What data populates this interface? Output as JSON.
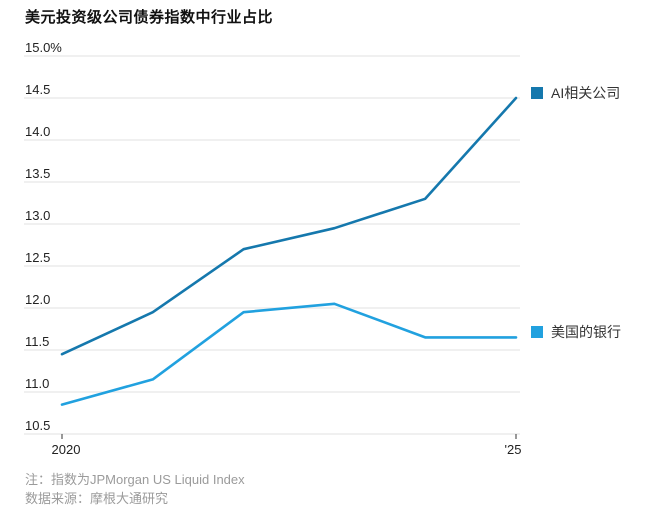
{
  "title": "美元投资级公司债券指数中行业占比",
  "chart_data": {
    "type": "line",
    "x": [
      2020,
      2021,
      2022,
      2023,
      2024,
      2025
    ],
    "series": [
      {
        "name": "AI相关公司",
        "color": "#1578ad",
        "values": [
          11.45,
          11.95,
          12.7,
          12.95,
          13.3,
          14.5
        ]
      },
      {
        "name": "美国的银行",
        "color": "#21a1df",
        "values": [
          10.85,
          11.15,
          11.95,
          12.05,
          11.65,
          11.65
        ]
      }
    ],
    "ylim": [
      10.5,
      15.0
    ],
    "yticks": [
      {
        "value": 15.0,
        "label": "15.0%"
      },
      {
        "value": 14.5,
        "label": "14.5"
      },
      {
        "value": 14.0,
        "label": "14.0"
      },
      {
        "value": 13.5,
        "label": "13.5"
      },
      {
        "value": 13.0,
        "label": "13.0"
      },
      {
        "value": 12.5,
        "label": "12.5"
      },
      {
        "value": 12.0,
        "label": "12.0"
      },
      {
        "value": 11.5,
        "label": "11.5"
      },
      {
        "value": 11.0,
        "label": "11.0"
      },
      {
        "value": 10.5,
        "label": "10.5"
      }
    ],
    "xticks": [
      {
        "value": 2020,
        "label": "2020"
      },
      {
        "value": 2025,
        "label": "'25"
      }
    ],
    "grid": true,
    "legend_position": "right"
  },
  "notes": {
    "note1": "注：指数为JPMorgan US Liquid Index",
    "note2": "数据来源：摩根大通研究"
  },
  "colors": {
    "grid": "#ececec",
    "axis_text": "#222222",
    "tick": "#555555",
    "note_text": "#9b9b9b"
  }
}
